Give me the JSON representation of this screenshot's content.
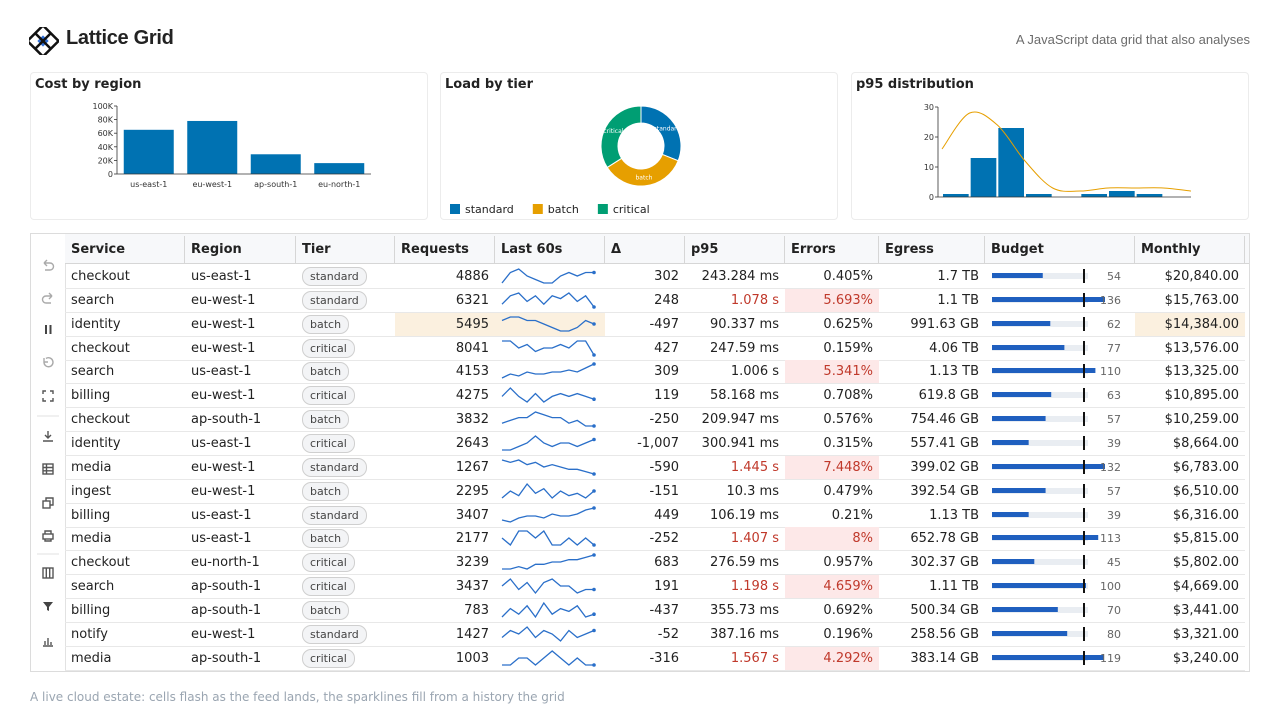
{
  "header": {
    "title": "Lattice Grid",
    "tagline": "A JavaScript data grid that also analyses"
  },
  "chart_data": [
    {
      "type": "bar",
      "title": "Cost by region",
      "categories": [
        "us-east-1",
        "eu-west-1",
        "ap-south-1",
        "eu-north-1"
      ],
      "values": [
        65000,
        78000,
        29000,
        16000
      ],
      "color": "#0072b2",
      "ylim": [
        0,
        100000
      ],
      "yticks": [
        0,
        {
          "value": 20000,
          "label": "20K"
        },
        {
          "value": 40000,
          "label": "40K"
        },
        {
          "value": 60000,
          "label": "60K"
        },
        {
          "value": 80000,
          "label": "80K"
        },
        {
          "value": 100000,
          "label": "100K"
        }
      ]
    },
    {
      "type": "pie",
      "title": "Load by tier",
      "categories": [
        "standard",
        "batch",
        "critical"
      ],
      "values": [
        31,
        35,
        34
      ],
      "colors": [
        "#0072b2",
        "#e69f00",
        "#009e73"
      ],
      "donut": true,
      "legend": "bottom"
    },
    {
      "type": "histogram",
      "title": "p95 distribution",
      "bins": [
        0,
        180,
        360,
        540,
        720,
        900,
        1080,
        1260,
        1440,
        1620
      ],
      "counts": [
        1,
        13,
        23,
        1,
        0,
        1,
        2,
        1,
        0
      ],
      "color": "#0072b2",
      "curve": {
        "color": "#e69f00",
        "values": [
          16,
          28,
          24,
          12,
          3,
          2,
          3,
          3,
          3,
          2
        ]
      },
      "ylim": [
        0,
        30
      ],
      "yticks": [
        0,
        10,
        20,
        30
      ]
    }
  ],
  "table": {
    "columns": [
      "Service",
      "Region",
      "Tier",
      "Requests",
      "Last 60s",
      "Δ",
      "p95",
      "Errors",
      "Egress",
      "Budget",
      "Monthly"
    ],
    "sparkline_color": "#2a6fc9",
    "budget_color": "#1f5fbf",
    "alert_color": "#c0392b",
    "alert_bg": "#fde8e8",
    "flash_bg": "#fbf0df",
    "rows": [
      {
        "service": "checkout",
        "region": "us-east-1",
        "tier": "standard",
        "requests": 4886,
        "spark": [
          3,
          6,
          7,
          5,
          4,
          3,
          3,
          5,
          6,
          5,
          6,
          6
        ],
        "delta": "302",
        "p95": "243.284 ms",
        "errors": "0.405%",
        "egress": "1.7 TB",
        "budget": 54,
        "monthly": "$20,840.00"
      },
      {
        "service": "search",
        "region": "eu-west-1",
        "tier": "standard",
        "requests": 6321,
        "spark": [
          2,
          5,
          6,
          3,
          5,
          2,
          5,
          4,
          6,
          3,
          5,
          1
        ],
        "delta": "248",
        "p95": "1.078 s",
        "errors": "5.693%",
        "egress": "1.1 TB",
        "budget": 136,
        "monthly": "$15,763.00",
        "alerts": [
          "p95",
          "errors"
        ]
      },
      {
        "service": "identity",
        "region": "eu-west-1",
        "tier": "batch",
        "requests": 5495,
        "spark": [
          6,
          7,
          7,
          6,
          6,
          5,
          4,
          3,
          3,
          4,
          6,
          5
        ],
        "delta": "-497",
        "p95": "90.337 ms",
        "errors": "0.625%",
        "egress": "991.63 GB",
        "budget": 62,
        "monthly": "$14,384.00",
        "flash": [
          "requests",
          "spark",
          "monthly"
        ]
      },
      {
        "service": "checkout",
        "region": "eu-west-1",
        "tier": "critical",
        "requests": 8041,
        "spark": [
          6,
          6,
          4,
          5,
          3,
          4,
          4,
          5,
          4,
          6,
          6,
          2
        ],
        "delta": "427",
        "p95": "247.59 ms",
        "errors": "0.159%",
        "egress": "4.06 TB",
        "budget": 77,
        "monthly": "$13,576.00"
      },
      {
        "service": "search",
        "region": "us-east-1",
        "tier": "batch",
        "requests": 4153,
        "spark": [
          2,
          4,
          3,
          5,
          4,
          4,
          5,
          5,
          6,
          5,
          7,
          9
        ],
        "delta": "309",
        "p95": "1.006 s",
        "errors": "5.341%",
        "egress": "1.13 TB",
        "budget": 110,
        "monthly": "$13,325.00",
        "alerts": [
          "errors"
        ]
      },
      {
        "service": "billing",
        "region": "eu-west-1",
        "tier": "critical",
        "requests": 4275,
        "spark": [
          5,
          8,
          5,
          3,
          6,
          3,
          5,
          6,
          5,
          6,
          5,
          4
        ],
        "delta": "119",
        "p95": "58.168 ms",
        "errors": "0.708%",
        "egress": "619.8 GB",
        "budget": 63,
        "monthly": "$10,895.00"
      },
      {
        "service": "checkout",
        "region": "ap-south-1",
        "tier": "batch",
        "requests": 3832,
        "spark": [
          4,
          5,
          6,
          6,
          8,
          7,
          6,
          6,
          4,
          5,
          3,
          3
        ],
        "delta": "-250",
        "p95": "209.947 ms",
        "errors": "0.576%",
        "egress": "754.46 GB",
        "budget": 57,
        "monthly": "$10,259.00"
      },
      {
        "service": "identity",
        "region": "us-east-1",
        "tier": "critical",
        "requests": 2643,
        "spark": [
          3,
          3,
          4,
          5,
          7,
          5,
          4,
          5,
          5,
          4,
          5,
          6
        ],
        "delta": "-1,007",
        "p95": "300.941 ms",
        "errors": "0.315%",
        "egress": "557.41 GB",
        "budget": 39,
        "monthly": "$8,664.00"
      },
      {
        "service": "media",
        "region": "eu-west-1",
        "tier": "standard",
        "requests": 1267,
        "spark": [
          7,
          6,
          7,
          5,
          6,
          4,
          5,
          4,
          3,
          3,
          2,
          1
        ],
        "delta": "-590",
        "p95": "1.445 s",
        "errors": "7.448%",
        "egress": "399.02 GB",
        "budget": 132,
        "monthly": "$6,783.00",
        "alerts": [
          "p95",
          "errors"
        ]
      },
      {
        "service": "ingest",
        "region": "eu-west-1",
        "tier": "batch",
        "requests": 2295,
        "spark": [
          3,
          6,
          4,
          9,
          5,
          7,
          3,
          6,
          4,
          5,
          3,
          6
        ],
        "delta": "-151",
        "p95": "10.3 ms",
        "errors": "0.479%",
        "egress": "392.54 GB",
        "budget": 57,
        "monthly": "$6,510.00"
      },
      {
        "service": "billing",
        "region": "us-east-1",
        "tier": "standard",
        "requests": 3407,
        "spark": [
          3,
          2,
          4,
          5,
          5,
          4,
          6,
          5,
          5,
          6,
          8,
          9
        ],
        "delta": "449",
        "p95": "106.19 ms",
        "errors": "0.21%",
        "egress": "1.13 TB",
        "budget": 39,
        "monthly": "$6,316.00"
      },
      {
        "service": "media",
        "region": "us-east-1",
        "tier": "batch",
        "requests": 2177,
        "spark": [
          4,
          3,
          5,
          5,
          4,
          5,
          3,
          3,
          4,
          3,
          4,
          3
        ],
        "delta": "-252",
        "p95": "1.407 s",
        "errors": "8%",
        "egress": "652.78 GB",
        "budget": 113,
        "monthly": "$5,815.00",
        "alerts": [
          "p95",
          "errors"
        ]
      },
      {
        "service": "checkout",
        "region": "eu-north-1",
        "tier": "critical",
        "requests": 3239,
        "spark": [
          3,
          3,
          4,
          3,
          5,
          5,
          6,
          6,
          7,
          7,
          8,
          9
        ],
        "delta": "683",
        "p95": "276.59 ms",
        "errors": "0.957%",
        "egress": "302.37 GB",
        "budget": 45,
        "monthly": "$5,802.00"
      },
      {
        "service": "search",
        "region": "ap-south-1",
        "tier": "critical",
        "requests": 3437,
        "spark": [
          5,
          7,
          4,
          6,
          3,
          6,
          7,
          5,
          5,
          3,
          4,
          4
        ],
        "delta": "191",
        "p95": "1.198 s",
        "errors": "4.659%",
        "egress": "1.11 TB",
        "budget": 100,
        "monthly": "$4,669.00",
        "alerts": [
          "p95",
          "errors"
        ]
      },
      {
        "service": "billing",
        "region": "ap-south-1",
        "tier": "batch",
        "requests": 783,
        "spark": [
          3,
          6,
          4,
          7,
          3,
          8,
          4,
          6,
          5,
          7,
          3,
          4
        ],
        "delta": "-437",
        "p95": "355.73 ms",
        "errors": "0.692%",
        "egress": "500.34 GB",
        "budget": 70,
        "monthly": "$3,441.00"
      },
      {
        "service": "notify",
        "region": "eu-west-1",
        "tier": "standard",
        "requests": 1427,
        "spark": [
          4,
          6,
          5,
          7,
          4,
          6,
          5,
          3,
          6,
          4,
          5,
          6
        ],
        "delta": "-52",
        "p95": "387.16 ms",
        "errors": "0.196%",
        "egress": "258.56 GB",
        "budget": 80,
        "monthly": "$3,321.00"
      },
      {
        "service": "media",
        "region": "ap-south-1",
        "tier": "critical",
        "requests": 1003,
        "spark": [
          4,
          4,
          5,
          5,
          4,
          5,
          6,
          5,
          4,
          5,
          4,
          4
        ],
        "delta": "-316",
        "p95": "1.567 s",
        "errors": "4.292%",
        "egress": "383.14 GB",
        "budget": 119,
        "monthly": "$3,240.00",
        "alerts": [
          "p95",
          "errors"
        ]
      }
    ]
  },
  "footer": "A live cloud estate: cells flash as the feed lands, the sparklines fill from a history the grid"
}
